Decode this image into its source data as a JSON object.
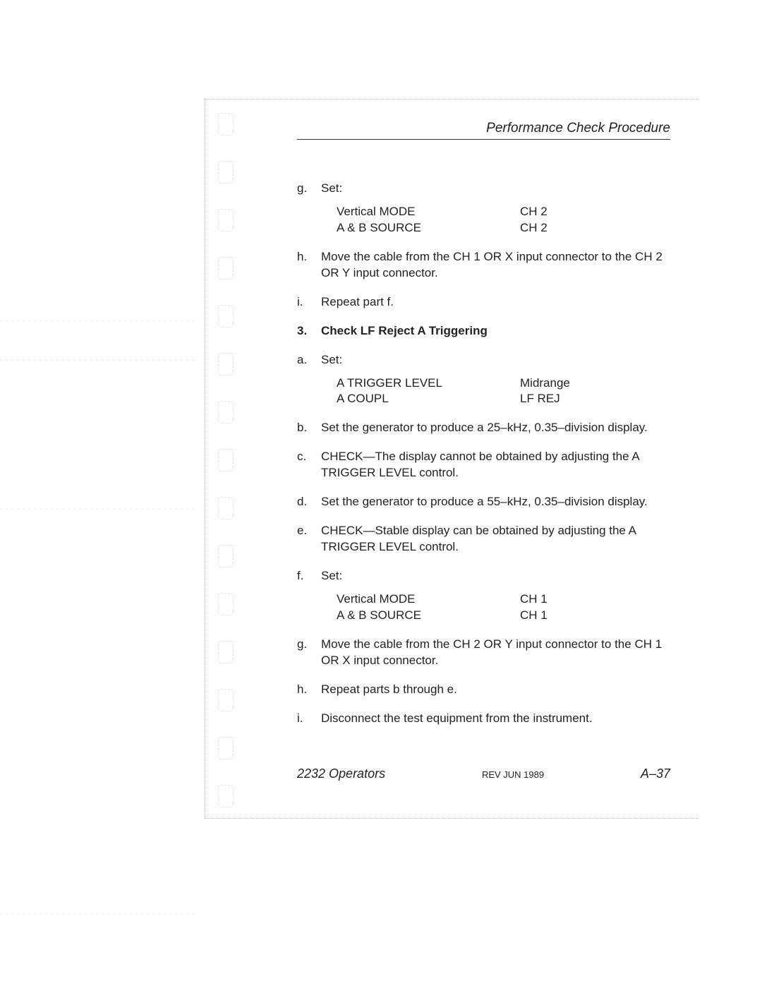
{
  "header": {
    "title": "Performance Check Procedure"
  },
  "items": [
    {
      "marker": "g.",
      "text": "Set:",
      "settings": [
        {
          "label": "Vertical MODE",
          "value": "CH 2"
        },
        {
          "label": "A & B SOURCE",
          "value": "CH 2"
        }
      ]
    },
    {
      "marker": "h.",
      "text": "Move the cable from the CH 1 OR X input connector to the CH 2 OR Y input connector.",
      "justify": true
    },
    {
      "marker": "i.",
      "text": "Repeat part f."
    },
    {
      "marker": "3.",
      "text": "Check LF Reject A Triggering",
      "bold": true
    },
    {
      "marker": "a.",
      "text": "Set:",
      "settings": [
        {
          "label": "A TRIGGER LEVEL",
          "value": "Midrange"
        },
        {
          "label": "A COUPL",
          "value": "LF REJ"
        }
      ]
    },
    {
      "marker": "b.",
      "text": "Set the generator to produce a 25–kHz, 0.35–division display."
    },
    {
      "marker": "c.",
      "text": "CHECK—The display cannot be obtained by adjusting the A TRIGGER LEVEL control.",
      "justify": true
    },
    {
      "marker": "d.",
      "text": "Set the generator to produce a 55–kHz, 0.35–division display."
    },
    {
      "marker": "e.",
      "text": "CHECK—Stable display can be obtained by adjusting the A TRIGGER LEVEL control.",
      "justify": true
    },
    {
      "marker": "f.",
      "text": "Set:",
      "settings": [
        {
          "label": "Vertical MODE",
          "value": "CH 1"
        },
        {
          "label": "A & B SOURCE",
          "value": "CH 1"
        }
      ]
    },
    {
      "marker": "g.",
      "text": "Move the cable from the CH 2 OR Y input connector to the CH 1 OR X input connector.",
      "justify": true
    },
    {
      "marker": "h.",
      "text": "Repeat parts b through e."
    },
    {
      "marker": "i.",
      "text": "Disconnect the test equipment from the instrument."
    }
  ],
  "footer": {
    "left": "2232 Operators",
    "mid": "REV JUN 1989",
    "right": "A–37"
  },
  "binding_marks": 15,
  "scanlines": [
    455,
    510,
    720,
    1295
  ]
}
